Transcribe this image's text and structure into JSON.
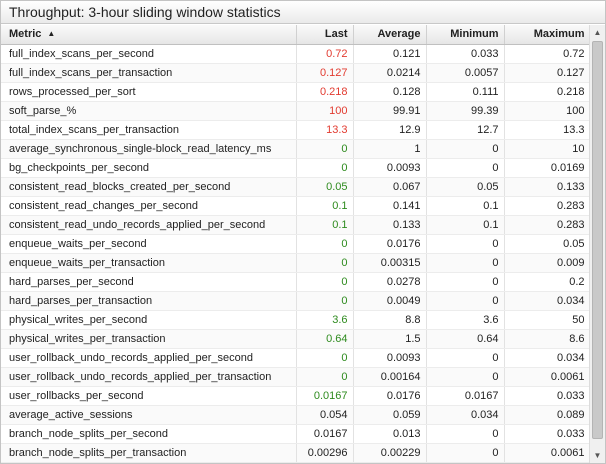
{
  "panel": {
    "title": "Throughput: 3-hour sliding window statistics"
  },
  "columns": {
    "metric": "Metric",
    "last": "Last",
    "average": "Average",
    "minimum": "Minimum",
    "maximum": "Maximum"
  },
  "sort": {
    "column": "Metric",
    "direction": "ascending",
    "icon": "sort-ascending-icon"
  },
  "colors": {
    "red": "#e23b30",
    "green": "#2e8b1e"
  },
  "rows": [
    {
      "metric": "full_index_scans_per_second",
      "last": "0.72",
      "last_color": "red",
      "average": "0.121",
      "minimum": "0.033",
      "maximum": "0.72"
    },
    {
      "metric": "full_index_scans_per_transaction",
      "last": "0.127",
      "last_color": "red",
      "average": "0.0214",
      "minimum": "0.0057",
      "maximum": "0.127"
    },
    {
      "metric": "rows_processed_per_sort",
      "last": "0.218",
      "last_color": "red",
      "average": "0.128",
      "minimum": "0.111",
      "maximum": "0.218"
    },
    {
      "metric": "soft_parse_%",
      "last": "100",
      "last_color": "red",
      "average": "99.91",
      "minimum": "99.39",
      "maximum": "100"
    },
    {
      "metric": "total_index_scans_per_transaction",
      "last": "13.3",
      "last_color": "red",
      "average": "12.9",
      "minimum": "12.7",
      "maximum": "13.3"
    },
    {
      "metric": "average_synchronous_single-block_read_latency_ms",
      "last": "0",
      "last_color": "green",
      "average": "1",
      "minimum": "0",
      "maximum": "10"
    },
    {
      "metric": "bg_checkpoints_per_second",
      "last": "0",
      "last_color": "green",
      "average": "0.0093",
      "minimum": "0",
      "maximum": "0.0169"
    },
    {
      "metric": "consistent_read_blocks_created_per_second",
      "last": "0.05",
      "last_color": "green",
      "average": "0.067",
      "minimum": "0.05",
      "maximum": "0.133"
    },
    {
      "metric": "consistent_read_changes_per_second",
      "last": "0.1",
      "last_color": "green",
      "average": "0.141",
      "minimum": "0.1",
      "maximum": "0.283"
    },
    {
      "metric": "consistent_read_undo_records_applied_per_second",
      "last": "0.1",
      "last_color": "green",
      "average": "0.133",
      "minimum": "0.1",
      "maximum": "0.283"
    },
    {
      "metric": "enqueue_waits_per_second",
      "last": "0",
      "last_color": "green",
      "average": "0.0176",
      "minimum": "0",
      "maximum": "0.05"
    },
    {
      "metric": "enqueue_waits_per_transaction",
      "last": "0",
      "last_color": "green",
      "average": "0.00315",
      "minimum": "0",
      "maximum": "0.009"
    },
    {
      "metric": "hard_parses_per_second",
      "last": "0",
      "last_color": "green",
      "average": "0.0278",
      "minimum": "0",
      "maximum": "0.2"
    },
    {
      "metric": "hard_parses_per_transaction",
      "last": "0",
      "last_color": "green",
      "average": "0.0049",
      "minimum": "0",
      "maximum": "0.034"
    },
    {
      "metric": "physical_writes_per_second",
      "last": "3.6",
      "last_color": "green",
      "average": "8.8",
      "minimum": "3.6",
      "maximum": "50"
    },
    {
      "metric": "physical_writes_per_transaction",
      "last": "0.64",
      "last_color": "green",
      "average": "1.5",
      "minimum": "0.64",
      "maximum": "8.6"
    },
    {
      "metric": "user_rollback_undo_records_applied_per_second",
      "last": "0",
      "last_color": "green",
      "average": "0.0093",
      "minimum": "0",
      "maximum": "0.034"
    },
    {
      "metric": "user_rollback_undo_records_applied_per_transaction",
      "last": "0",
      "last_color": "green",
      "average": "0.00164",
      "minimum": "0",
      "maximum": "0.0061"
    },
    {
      "metric": "user_rollbacks_per_second",
      "last": "0.0167",
      "last_color": "green",
      "average": "0.0176",
      "minimum": "0.0167",
      "maximum": "0.033"
    },
    {
      "metric": "average_active_sessions",
      "last": "0.054",
      "last_color": "default",
      "average": "0.059",
      "minimum": "0.034",
      "maximum": "0.089"
    },
    {
      "metric": "branch_node_splits_per_second",
      "last": "0.0167",
      "last_color": "default",
      "average": "0.013",
      "minimum": "0",
      "maximum": "0.033"
    },
    {
      "metric": "branch_node_splits_per_transaction",
      "last": "0.00296",
      "last_color": "default",
      "average": "0.00229",
      "minimum": "0",
      "maximum": "0.0061"
    }
  ],
  "scrollbar": {
    "up_icon": "scroll-up-arrow-icon",
    "down_icon": "scroll-down-arrow-icon"
  }
}
